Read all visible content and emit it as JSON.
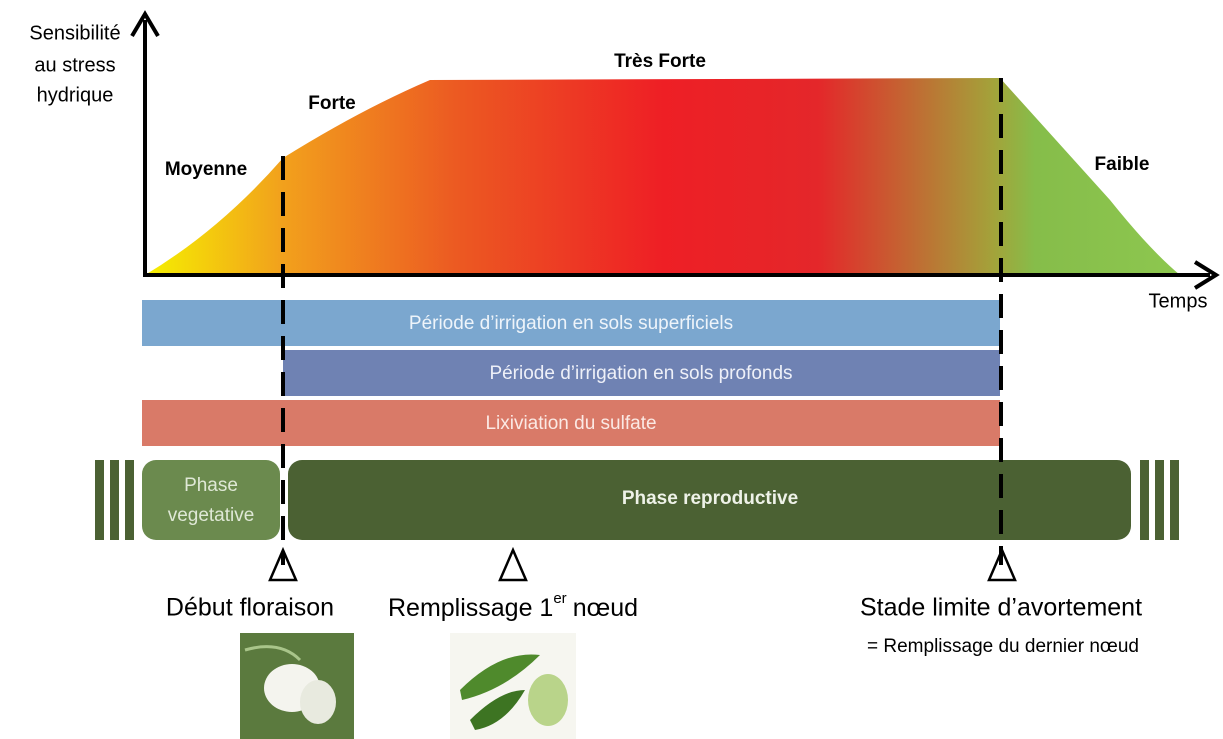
{
  "axis": {
    "y_label": [
      "Sensibilité",
      "au stress",
      "hydrique"
    ],
    "x_label": "Temps"
  },
  "levels": {
    "moyenne": "Moyenne",
    "forte": "Forte",
    "tres_forte": "Très Forte",
    "faible": "Faible"
  },
  "bands": [
    "Période d’irrigation en sols superficiels",
    "Période d’irrigation en sols profonds",
    "Lixiviation du sulfate"
  ],
  "phases": {
    "vegetative": [
      "Phase",
      "vegetative"
    ],
    "reproductive": "Phase reproductive"
  },
  "stages": {
    "floraison": "Début floraison",
    "remplissage": {
      "text": "Remplissage 1",
      "sup": "er",
      "end": "nœud"
    },
    "avortement": "Stade limite d’avortement",
    "avortement_note": "= Remplissage du dernier nœud"
  }
}
